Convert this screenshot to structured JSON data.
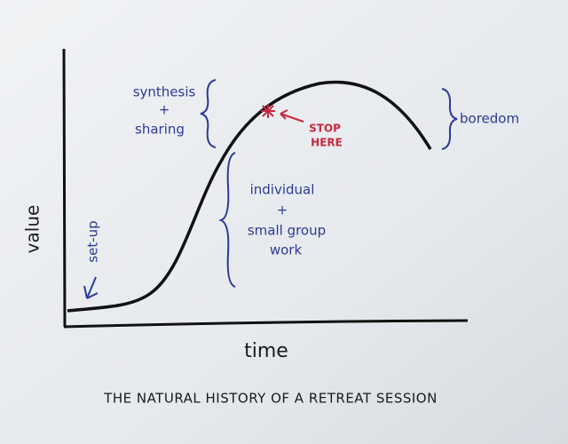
{
  "title": "THE NATURAL HISTORY OF A RETREAT SESSION",
  "axes": {
    "y_label": "value",
    "x_label": "time"
  },
  "annotations": {
    "set_up": "set-up",
    "synthesis": [
      "synthesis",
      "+",
      "sharing"
    ],
    "individual": [
      "individual",
      "+",
      "small group",
      "work"
    ],
    "boredom": "boredom",
    "stop_here": [
      "STOP",
      "HERE"
    ]
  }
}
